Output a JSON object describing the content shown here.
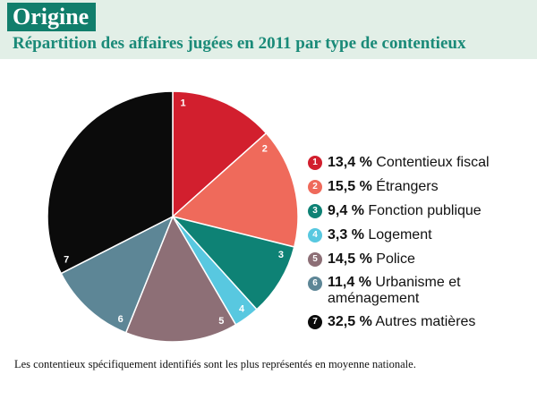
{
  "header": {
    "title": "Origine",
    "subtitle": "Répartition des affaires jugées en 2011 par type de contentieux"
  },
  "chart_data": {
    "type": "pie",
    "title": "Répartition des affaires jugées en 2011 par type de contentieux",
    "slices": [
      {
        "id": "1",
        "percent": 13.4,
        "percent_label": "13,4 %",
        "label": "Contentieux fiscal",
        "color": "#d21f2e"
      },
      {
        "id": "2",
        "percent": 15.5,
        "percent_label": "15,5 %",
        "label": "Étrangers",
        "color": "#ef6a5b"
      },
      {
        "id": "3",
        "percent": 9.4,
        "percent_label": "9,4 %",
        "label": "Fonction publique",
        "color": "#0e8275"
      },
      {
        "id": "4",
        "percent": 3.3,
        "percent_label": "3,3 %",
        "label": "Logement",
        "color": "#58c8e0"
      },
      {
        "id": "5",
        "percent": 14.5,
        "percent_label": "14,5 %",
        "label": "Police",
        "color": "#8d6f76"
      },
      {
        "id": "6",
        "percent": 11.4,
        "percent_label": "11,4 %",
        "label": "Urbanisme et aménagement",
        "color": "#5d8696"
      },
      {
        "id": "7",
        "percent": 32.5,
        "percent_label": "32,5 %",
        "label": "Autres matières",
        "color": "#0b0b0b"
      }
    ]
  },
  "legend": {
    "items": [
      {
        "marker": "1",
        "pct": "13,4 %",
        "text": "Contentieux fiscal"
      },
      {
        "marker": "2",
        "pct": "15,5 %",
        "text": "Étrangers"
      },
      {
        "marker": "3",
        "pct": "9,4 %",
        "text": "Fonction publique"
      },
      {
        "marker": "4",
        "pct": "3,3 %",
        "text": "Logement"
      },
      {
        "marker": "5",
        "pct": "14,5 %",
        "text": "Police"
      },
      {
        "marker": "6",
        "pct": "11,4 %",
        "text": "Urbanisme et aménagement"
      },
      {
        "marker": "7",
        "pct": "32,5 %",
        "text": "Autres matières"
      }
    ]
  },
  "footnote": "Les contentieux spécifiquement identifiés sont les plus représentés en moyenne nationale."
}
